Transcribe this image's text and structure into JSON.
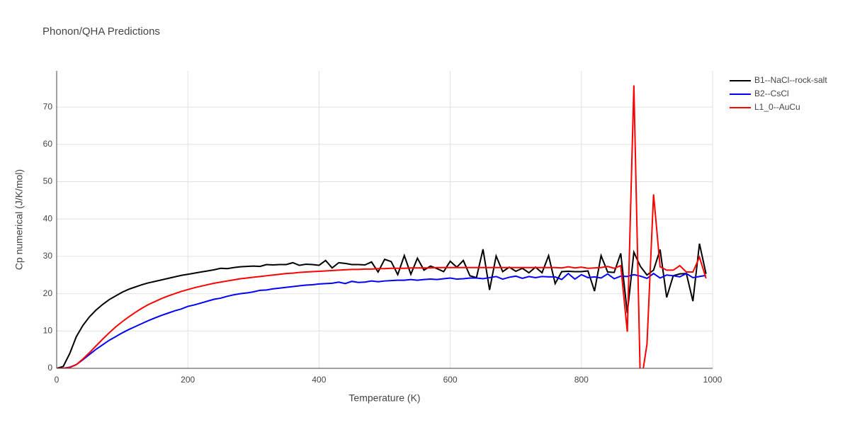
{
  "chart_data": {
    "type": "line",
    "title": "Phonon/QHA Predictions",
    "x_label": "Temperature (K)",
    "y_label": "Cp numerical (J/K/mol)",
    "x": [
      0,
      10,
      20,
      30,
      40,
      50,
      60,
      70,
      80,
      90,
      100,
      110,
      120,
      130,
      140,
      150,
      160,
      170,
      180,
      190,
      200,
      210,
      220,
      230,
      240,
      250,
      260,
      270,
      280,
      290,
      300,
      310,
      320,
      330,
      340,
      350,
      360,
      370,
      380,
      390,
      400,
      410,
      420,
      430,
      440,
      450,
      460,
      470,
      480,
      490,
      500,
      510,
      520,
      530,
      540,
      550,
      560,
      570,
      580,
      590,
      600,
      610,
      620,
      630,
      640,
      650,
      660,
      670,
      680,
      690,
      700,
      710,
      720,
      730,
      740,
      750,
      760,
      770,
      780,
      790,
      800,
      810,
      820,
      830,
      840,
      850,
      860,
      870,
      880,
      890,
      900,
      910,
      920,
      930,
      940,
      950,
      960,
      970,
      980,
      990
    ],
    "series": [
      {
        "name": "B1--NaCl--rock-salt",
        "color": "#000000",
        "values": [
          0,
          0.5,
          4,
          8.5,
          11.5,
          13.8,
          15.6,
          17.1,
          18.4,
          19.4,
          20.4,
          21.2,
          21.8,
          22.4,
          22.9,
          23.3,
          23.7,
          24.1,
          24.5,
          24.9,
          25.2,
          25.5,
          25.8,
          26.1,
          26.4,
          26.8,
          26.7,
          27.0,
          27.2,
          27.3,
          27.4,
          27.3,
          27.8,
          27.7,
          27.8,
          27.8,
          28.3,
          27.6,
          27.9,
          27.8,
          27.6,
          28.9,
          26.9,
          28.3,
          28.1,
          27.8,
          27.8,
          27.7,
          28.5,
          25.8,
          29.2,
          28.6,
          25.1,
          30.2,
          25.2,
          29.5,
          26.3,
          27.4,
          26.7,
          25.9,
          28.7,
          27.1,
          28.9,
          24.8,
          24.3,
          31.9,
          21.0,
          30.1,
          25.9,
          27.1,
          26.0,
          26.8,
          25.6,
          27.1,
          25.6,
          30.2,
          22.7,
          25.9,
          26.0,
          25.9,
          25.9,
          26.1,
          20.7,
          30.2,
          25.8,
          25.7,
          30.8,
          14.8,
          31.1,
          27.3,
          25.0,
          26.3,
          31.8,
          19.0,
          24.8,
          25.3,
          25.4,
          18.0,
          33.4,
          25.3
        ]
      },
      {
        "name": "B2--CsCl",
        "color": "#0000ff",
        "values": [
          0,
          0,
          0.3,
          1.0,
          2.3,
          3.7,
          5.1,
          6.3,
          7.5,
          8.5,
          9.5,
          10.4,
          11.2,
          12.0,
          12.8,
          13.5,
          14.2,
          14.8,
          15.4,
          15.9,
          16.6,
          17.0,
          17.5,
          18.0,
          18.5,
          18.8,
          19.3,
          19.7,
          20.0,
          20.2,
          20.5,
          20.9,
          21.0,
          21.3,
          21.5,
          21.7,
          21.9,
          22.1,
          22.3,
          22.4,
          22.6,
          22.7,
          22.8,
          23.1,
          22.7,
          23.3,
          23.0,
          23.1,
          23.4,
          23.2,
          23.4,
          23.5,
          23.6,
          23.6,
          23.8,
          23.6,
          23.8,
          23.9,
          23.8,
          24.0,
          24.2,
          23.9,
          24.0,
          24.2,
          24.2,
          24.0,
          24.3,
          24.6,
          23.9,
          24.4,
          24.7,
          24.1,
          24.6,
          24.3,
          24.6,
          24.5,
          24.5,
          23.8,
          25.4,
          23.9,
          25.1,
          24.3,
          24.5,
          24.2,
          25.3,
          24.0,
          24.7,
          24.6,
          25.1,
          24.7,
          24.1,
          25.4,
          24.2,
          25.0,
          24.8,
          24.5,
          25.4,
          24.3,
          24.6,
          24.9
        ]
      },
      {
        "name": "L1_0--AuCu",
        "color": "#ff0000",
        "values": [
          0,
          0,
          0.2,
          1.0,
          2.5,
          4.2,
          6.0,
          7.8,
          9.5,
          11.1,
          12.5,
          13.8,
          15.0,
          16.1,
          17.1,
          17.9,
          18.7,
          19.4,
          20.0,
          20.6,
          21.1,
          21.6,
          22.0,
          22.4,
          22.8,
          23.1,
          23.4,
          23.7,
          24.0,
          24.2,
          24.4,
          24.6,
          24.8,
          25.0,
          25.2,
          25.4,
          25.5,
          25.7,
          25.8,
          25.9,
          26.0,
          26.1,
          26.2,
          26.3,
          26.4,
          26.5,
          26.5,
          26.6,
          26.6,
          26.7,
          26.7,
          26.8,
          26.8,
          26.8,
          26.9,
          26.9,
          26.9,
          26.9,
          27.0,
          27.0,
          27.0,
          27.0,
          27.0,
          27.0,
          27.0,
          27.0,
          27.0,
          27.0,
          27.0,
          27.0,
          27.0,
          27.0,
          27.0,
          27.0,
          27.0,
          27.0,
          27.0,
          26.9,
          27.2,
          26.9,
          27.1,
          26.8,
          26.9,
          27.0,
          27.3,
          26.8,
          27.5,
          9.8,
          75.8,
          -5.0,
          6.5,
          46.6,
          27.2,
          26.3,
          26.3,
          27.5,
          25.8,
          25.8,
          29.8,
          24.1
        ]
      }
    ],
    "xlim": [
      0,
      1000
    ],
    "xticks": [
      0,
      200,
      400,
      600,
      800,
      1000
    ],
    "ylim": [
      0,
      79.7
    ],
    "yticks": [
      0,
      10,
      20,
      30,
      40,
      50,
      60,
      70
    ],
    "grid": true,
    "legend": "right"
  }
}
